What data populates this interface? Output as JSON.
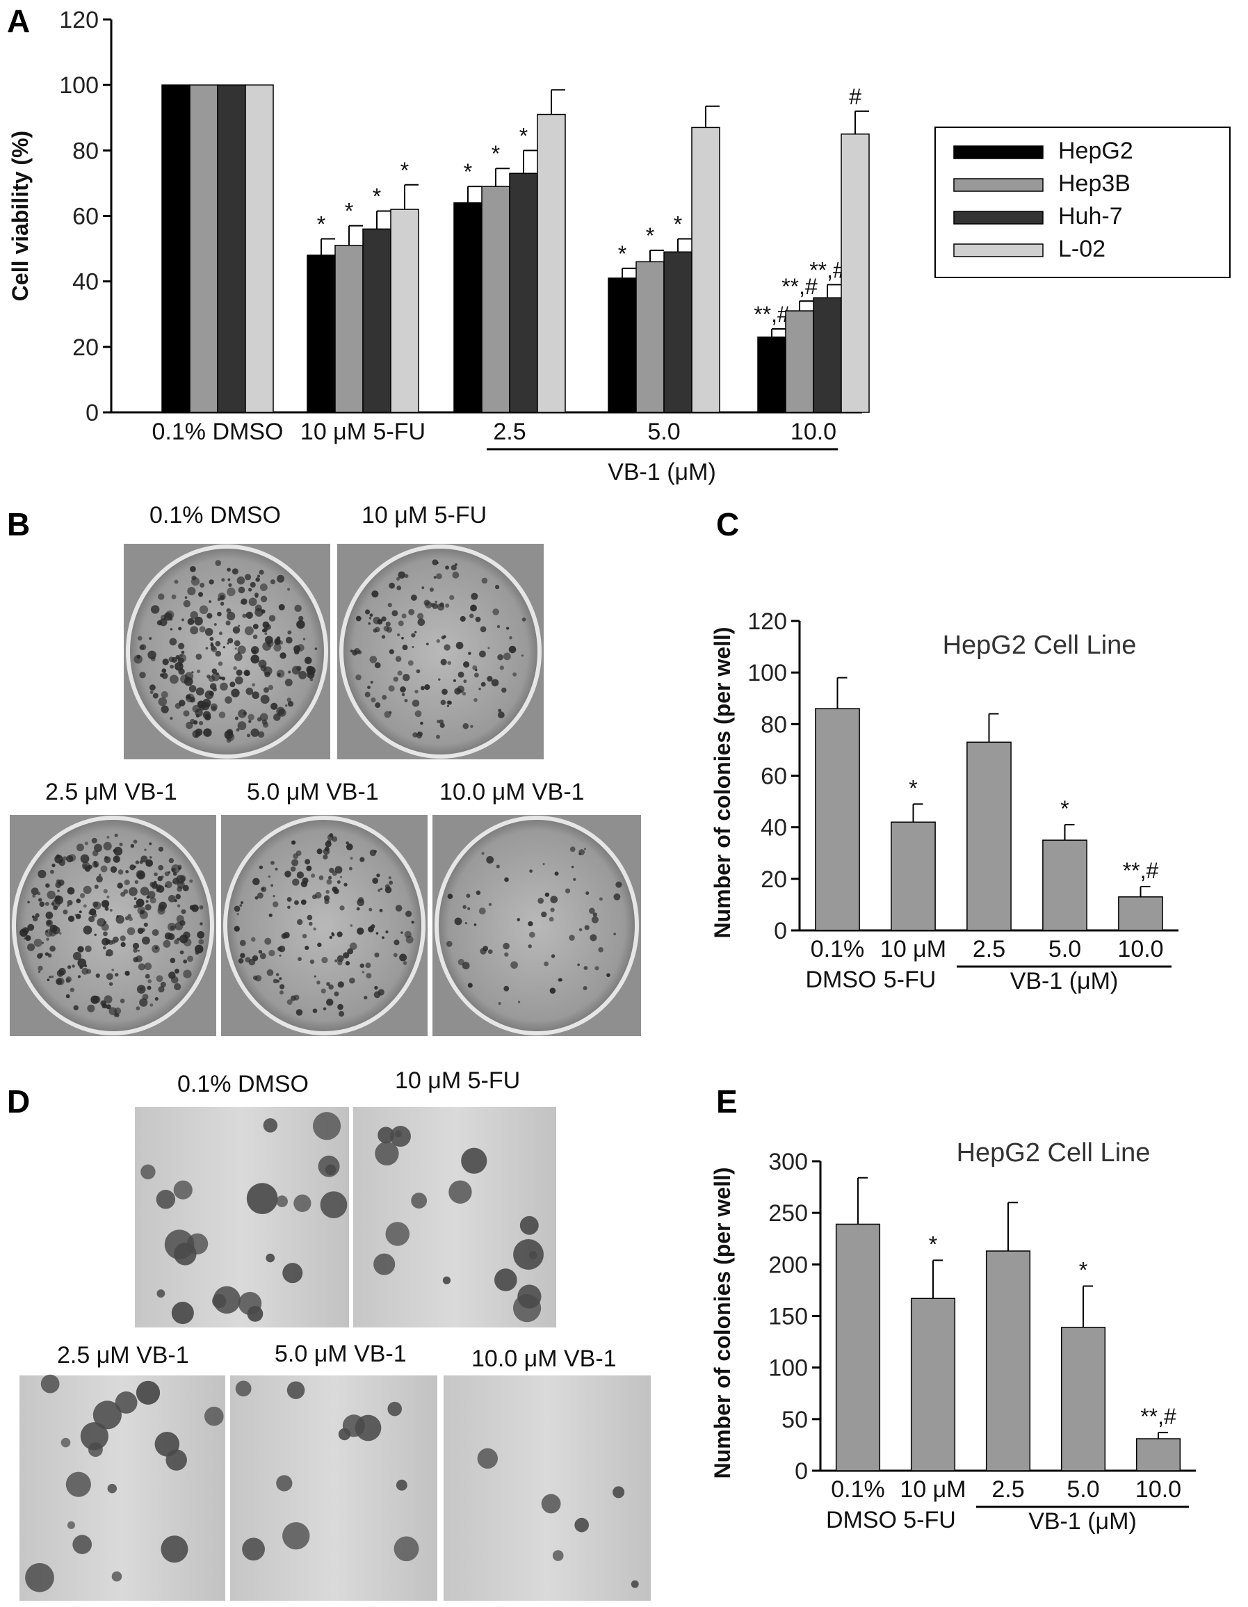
{
  "chart_data": [
    {
      "panel": "A",
      "type": "bar",
      "title": "",
      "ylabel": "Cell viability (%)",
      "xlabel": "",
      "ylim": [
        0,
        120
      ],
      "yticks": [
        0,
        20,
        40,
        60,
        80,
        100,
        120
      ],
      "categories": [
        "0.1% DMSO",
        "10 μM 5-FU",
        "2.5",
        "5.0",
        "10.0"
      ],
      "group_label": "VB-1 (μM)",
      "legend_position": "right",
      "series": [
        {
          "name": "HepG2",
          "color": "#000000",
          "values": [
            100,
            48,
            64,
            41,
            23
          ],
          "errors": [
            0,
            5,
            5,
            3,
            2.5
          ],
          "annotations": [
            "",
            "*",
            "*",
            "*",
            "**,#"
          ]
        },
        {
          "name": "Hep3B",
          "color": "#999999",
          "values": [
            100,
            51,
            69,
            46,
            31
          ],
          "errors": [
            0,
            6,
            5.5,
            3.5,
            3
          ],
          "annotations": [
            "",
            "*",
            "*",
            "*",
            "**,#"
          ]
        },
        {
          "name": "Huh-7",
          "color": "#333333",
          "values": [
            100,
            56,
            73,
            49,
            35
          ],
          "errors": [
            0,
            5.5,
            7,
            4,
            4
          ],
          "annotations": [
            "",
            "*",
            "*",
            "*",
            "**,#"
          ]
        },
        {
          "name": "L-02",
          "color": "#d0d0d0",
          "values": [
            100,
            62,
            91,
            87,
            85
          ],
          "errors": [
            0,
            7.5,
            7.5,
            6.5,
            7
          ],
          "annotations": [
            "",
            "*",
            "",
            "",
            "#"
          ]
        }
      ]
    },
    {
      "panel": "C",
      "type": "bar",
      "title": "HepG2  Cell Line",
      "ylabel": "Number of colonies (per well)",
      "ylim": [
        0,
        120
      ],
      "yticks": [
        0,
        20,
        40,
        60,
        80,
        100,
        120
      ],
      "categories_top": [
        "0.1%",
        "10 μM",
        "2.5",
        "5.0",
        "10.0"
      ],
      "categories_bottom": [
        "DMSO",
        "5-FU"
      ],
      "group_label": "VB-1 (μM)",
      "values": [
        86,
        42,
        73,
        35,
        13
      ],
      "errors": [
        12,
        7,
        11,
        6,
        4
      ],
      "annotations": [
        "",
        "*",
        "",
        "*",
        "**,#"
      ],
      "color": "#999999"
    },
    {
      "panel": "E",
      "type": "bar",
      "title": "HepG2 Cell Line",
      "ylabel": "Number of colonies (per well)",
      "ylim": [
        0,
        300
      ],
      "yticks": [
        0,
        50,
        100,
        150,
        200,
        250,
        300
      ],
      "categories_top": [
        "0.1%",
        "10 μM",
        "2.5",
        "5.0",
        "10.0"
      ],
      "categories_bottom": [
        "DMSO",
        "5-FU"
      ],
      "group_label": "VB-1 (μM)",
      "values": [
        239,
        167,
        213,
        139,
        31
      ],
      "errors": [
        45,
        37,
        47,
        40,
        6
      ],
      "annotations": [
        "",
        "*",
        "",
        "*",
        "**,#"
      ],
      "color": "#999999"
    }
  ],
  "panels": {
    "A": "A",
    "B": "B",
    "C": "C",
    "D": "D",
    "E": "E"
  },
  "panel_b": {
    "top_labels": [
      "0.1% DMSO",
      "10 μM 5-FU"
    ],
    "bottom_labels": [
      "2.5  μM VB-1",
      "5.0  μM VB-1",
      "10.0  μM VB-1"
    ]
  },
  "panel_d": {
    "top_labels": [
      "0.1% DMSO",
      "10 μM 5-FU"
    ],
    "bottom_labels": [
      "2.5 μM VB-1",
      "5.0 μM VB-1",
      "10.0  μM VB-1"
    ]
  }
}
